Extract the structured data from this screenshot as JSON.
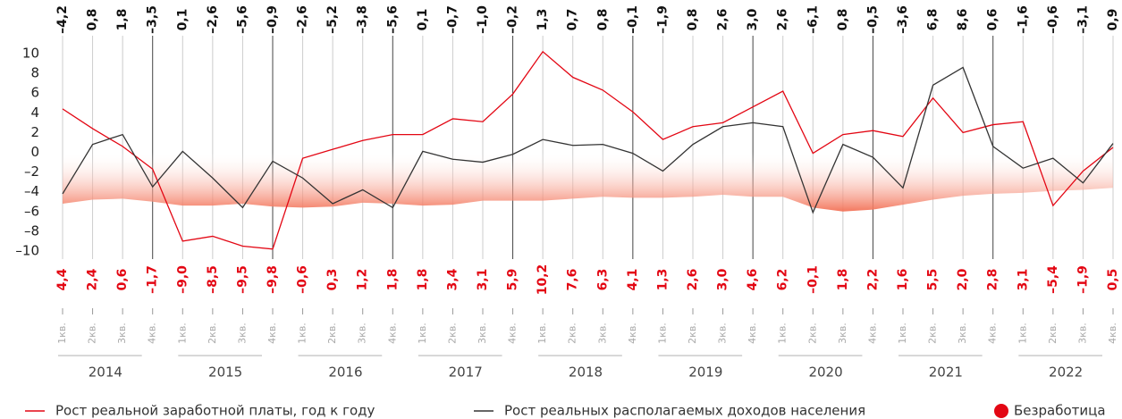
{
  "chart_data": {
    "type": "line",
    "categories": [
      "1кв.",
      "2кв.",
      "3кв.",
      "4кв.",
      "1кв.",
      "2кв.",
      "3кв.",
      "4кв.",
      "1кв.",
      "2кв.",
      "3кв.",
      "4кв.",
      "1кв.",
      "2кв.",
      "3кв.",
      "4кв.",
      "1кв.",
      "2кв.",
      "3кв.",
      "4кв.",
      "1кв.",
      "2кв.",
      "3кв.",
      "4кв.",
      "1кв.",
      "2кв.",
      "3кв.",
      "4кв.",
      "1кв.",
      "2кв.",
      "3кв.",
      "4кв.",
      "1кв.",
      "2кв.",
      "3кв.",
      "4кв."
    ],
    "years": [
      "2014",
      "2015",
      "2016",
      "2017",
      "2018",
      "2019",
      "2020",
      "2021",
      "2022"
    ],
    "ylim": [
      -10,
      10
    ],
    "yticks": [
      {
        "value": -10,
        "label": "–10"
      },
      {
        "value": -8,
        "label": "–8"
      },
      {
        "value": -6,
        "label": "–6"
      },
      {
        "value": -4,
        "label": "–4"
      },
      {
        "value": -2,
        "label": "–2"
      },
      0,
      2,
      4,
      6,
      8,
      10
    ],
    "series": [
      {
        "name": "Рост реальной заработной платы, год к году",
        "color": "#e30613",
        "values": [
          4.4,
          2.4,
          0.6,
          -1.7,
          -9.0,
          -8.5,
          -9.5,
          -9.8,
          -0.6,
          0.3,
          1.2,
          1.8,
          1.8,
          3.4,
          3.1,
          5.9,
          10.2,
          7.6,
          6.3,
          4.1,
          1.3,
          2.6,
          3.0,
          4.6,
          6.2,
          -0.1,
          1.8,
          2.2,
          1.6,
          5.5,
          2.0,
          2.8,
          3.1,
          -5.4,
          -1.9,
          0.5
        ],
        "value_labels": [
          "4,4",
          "2,4",
          "0,6",
          "–1,7",
          "–9,0",
          "–8,5",
          "–9,5",
          "–9,8",
          "–0,6",
          "0,3",
          "1,2",
          "1,8",
          "1,8",
          "3,4",
          "3,1",
          "5,9",
          "10,2",
          "7,6",
          "6,3",
          "4,1",
          "1,3",
          "2,6",
          "3,0",
          "4,6",
          "6,2",
          "–0,1",
          "1,8",
          "2,2",
          "1,6",
          "5,5",
          "2,0",
          "2,8",
          "3,1",
          "–5,4",
          "–1,9",
          "0,5"
        ]
      },
      {
        "name": "Рост реальных располагаемых доходов населения",
        "color": "#333333",
        "values": [
          -4.2,
          0.8,
          1.8,
          -3.5,
          0.1,
          -2.6,
          -5.6,
          -0.9,
          -2.6,
          -5.2,
          -3.8,
          -5.6,
          0.1,
          -0.7,
          -1.0,
          -0.2,
          1.3,
          0.7,
          0.8,
          -0.1,
          -1.9,
          0.8,
          2.6,
          3.0,
          2.6,
          -6.1,
          0.8,
          -0.5,
          -3.6,
          6.8,
          8.6,
          0.6,
          -1.6,
          -0.6,
          -3.1,
          0.9
        ],
        "value_labels": [
          "–4,2",
          "0,8",
          "1,8",
          "–3,5",
          "0,1",
          "–2,6",
          "–5,6",
          "–0,9",
          "–2,6",
          "–5,2",
          "–3,8",
          "–5,6",
          "0,1",
          "–0,7",
          "–1,0",
          "–0,2",
          "1,3",
          "0,7",
          "0,8",
          "–0,1",
          "–1,9",
          "0,8",
          "2,6",
          "3,0",
          "2,6",
          "–6,1",
          "0,8",
          "–0,5",
          "–3,6",
          "6,8",
          "8,6",
          "0,6",
          "–1,6",
          "–0,6",
          "–3,1",
          "0,9"
        ]
      },
      {
        "name": "Безработица",
        "color": "#f26b4f",
        "kind": "area",
        "values": [
          -5.2,
          -4.8,
          -4.7,
          -5.0,
          -5.4,
          -5.4,
          -5.2,
          -5.5,
          -5.6,
          -5.5,
          -5.1,
          -5.2,
          -5.4,
          -5.3,
          -4.9,
          -4.9,
          -4.9,
          -4.7,
          -4.5,
          -4.6,
          -4.6,
          -4.5,
          -4.3,
          -4.5,
          -4.5,
          -5.6,
          -6.0,
          -5.8,
          -5.3,
          -4.8,
          -4.4,
          -4.2,
          -4.1,
          -3.9,
          -3.8,
          -3.6
        ]
      }
    ]
  }
}
